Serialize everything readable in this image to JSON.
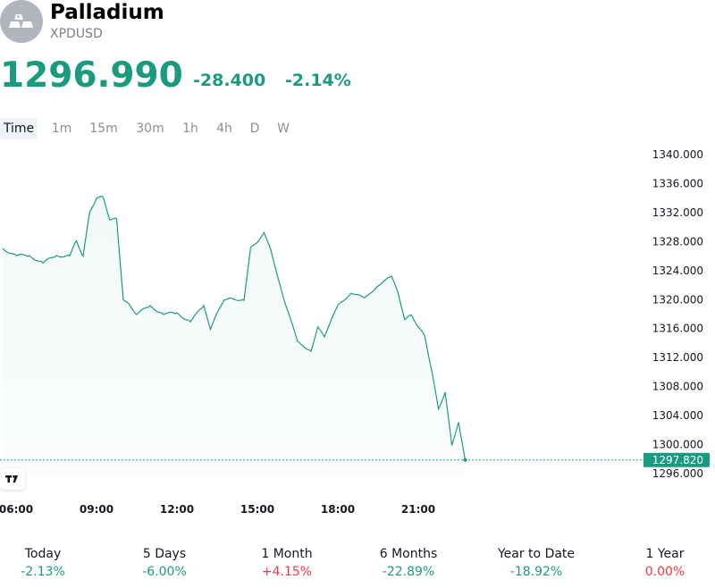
{
  "instrument": {
    "name": "Palladium",
    "symbol": "XPDUSD",
    "logo_icon": "gold-bars-icon"
  },
  "quote": {
    "price": "1296.990",
    "change": "-28.400",
    "change_percent": "-2.14%",
    "color": "#1a9b80"
  },
  "intervals": [
    {
      "label": "Time",
      "active": true
    },
    {
      "label": "1m",
      "active": false
    },
    {
      "label": "15m",
      "active": false
    },
    {
      "label": "30m",
      "active": false
    },
    {
      "label": "1h",
      "active": false
    },
    {
      "label": "4h",
      "active": false
    },
    {
      "label": "D",
      "active": false
    },
    {
      "label": "W",
      "active": false
    }
  ],
  "chart_data": {
    "type": "area",
    "series": [
      {
        "x": [
          "05:30",
          "06:00",
          "06:30",
          "07:00",
          "07:30",
          "08:00",
          "08:15",
          "08:30",
          "08:45",
          "09:00",
          "09:15",
          "09:30",
          "09:45",
          "10:00",
          "10:15",
          "10:30",
          "11:00",
          "11:30",
          "12:00",
          "12:30",
          "13:00",
          "13:15",
          "13:30",
          "13:45",
          "14:00",
          "14:30",
          "14:45",
          "15:00",
          "15:15",
          "15:30",
          "15:45",
          "16:00",
          "16:30",
          "17:00",
          "17:15",
          "17:30",
          "18:00",
          "18:30",
          "19:00",
          "19:30",
          "20:00",
          "20:15",
          "20:30",
          "20:45",
          "21:00",
          "21:15",
          "21:30",
          "21:45",
          "22:00",
          "22:15",
          "22:30",
          "22:45"
        ],
        "values": [
          1327,
          1326,
          1326,
          1325,
          1326,
          1326,
          1328,
          1326,
          1332,
          1334,
          1334,
          1331,
          1331,
          1320,
          1319,
          1318,
          1319,
          1318,
          1318,
          1317,
          1319,
          1316,
          1318,
          1320,
          1320,
          1320,
          1327,
          1328,
          1329,
          1327,
          1323,
          1320,
          1314,
          1313,
          1316,
          1315,
          1319,
          1321,
          1320,
          1322,
          1323,
          1321,
          1317,
          1318,
          1316,
          1315,
          1310,
          1305,
          1307,
          1300,
          1303,
          1297.82
        ]
      }
    ],
    "ylim": [
      1296.0,
      1340.0
    ],
    "y_ticks": [
      "1340.000",
      "1336.000",
      "1332.000",
      "1328.000",
      "1324.000",
      "1320.000",
      "1316.000",
      "1312.000",
      "1308.000",
      "1304.000",
      "1300.000",
      "1296.000"
    ],
    "x_ticks": [
      "06:00",
      "09:00",
      "12:00",
      "15:00",
      "18:00",
      "21:00"
    ],
    "last_value_label": "1297.820",
    "line_color": "#1a9b80",
    "grid": false
  },
  "performance": [
    {
      "label": "Today",
      "value": "-2.13%",
      "dir": "neg"
    },
    {
      "label": "5 Days",
      "value": "-6.00%",
      "dir": "neg"
    },
    {
      "label": "1 Month",
      "value": "+4.15%",
      "dir": "pos"
    },
    {
      "label": "6 Months",
      "value": "-22.89%",
      "dir": "neg"
    },
    {
      "label": "Year to Date",
      "value": "-18.92%",
      "dir": "neg"
    },
    {
      "label": "1 Year",
      "value": "0.00%",
      "dir": "pos"
    }
  ]
}
